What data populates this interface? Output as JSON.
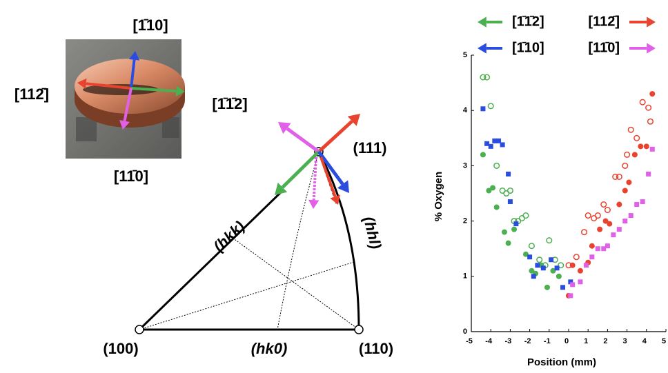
{
  "diagram": {
    "photo_labels": {
      "top": "[1̄10]",
      "left": "[112̄]",
      "right": "[1̄1̄2]",
      "bottom": "[11̄0]"
    },
    "pole_111": "(111)",
    "pole_100": "(100)",
    "pole_110": "(110)",
    "edge_hkk": "(hkk)",
    "edge_hhl": "(hhl)",
    "edge_hk0": "(hk0)"
  },
  "chart_data": {
    "type": "scatter",
    "xlabel": "Position (mm)",
    "ylabel": "% Oxygen",
    "xlim": [
      -5,
      5
    ],
    "xticks": [
      -5,
      -4,
      -3,
      -2,
      -1,
      0,
      1,
      2,
      3,
      4,
      5
    ],
    "ylim": [
      0,
      5
    ],
    "yticks": [
      0,
      1,
      2,
      3,
      4,
      5
    ],
    "legend": [
      {
        "label": "[1̄1̄2]",
        "color": "#4caf50",
        "side": "left"
      },
      {
        "label": "[112̄]",
        "color": "#e8432e",
        "side": "right"
      },
      {
        "label": "[1̄10]",
        "color": "#2a4de0",
        "side": "left"
      },
      {
        "label": "[11̄0]",
        "color": "#e060e8",
        "side": "right"
      }
    ],
    "series": [
      {
        "color": "#4caf50",
        "marker": "circle",
        "x": [
          -4.4,
          -4.1,
          -3.9,
          -3.7,
          -3.3,
          -3.1,
          -2.8,
          -2.2,
          -1.9,
          -1.7,
          -1.4,
          -1.1,
          -0.8,
          -0.5
        ],
        "values": [
          3.2,
          2.55,
          2.6,
          2.25,
          1.8,
          1.6,
          1.85,
          1.4,
          1.1,
          1.05,
          1.2,
          0.8,
          1.1,
          1.0
        ]
      },
      {
        "color": "#4caf50",
        "marker": "open-circle",
        "x": [
          -4.4,
          -4.2,
          -4.0,
          -3.7,
          -3.4,
          -3.2,
          -3.0,
          -2.8,
          -2.6,
          -2.4,
          -2.2,
          -1.9,
          -1.5,
          -1.2,
          -1.0,
          -0.7,
          -0.4
        ],
        "values": [
          4.6,
          4.6,
          4.08,
          3.0,
          2.55,
          2.5,
          2.55,
          2.0,
          2.0,
          2.05,
          2.1,
          1.55,
          1.3,
          1.2,
          1.65,
          1.3,
          1.2
        ]
      },
      {
        "color": "#2a4de0",
        "marker": "square",
        "x": [
          -4.4,
          -4.2,
          -4.0,
          -3.8,
          -3.6,
          -3.4,
          -3.1,
          -3.0,
          -2.7,
          -2.0,
          -1.8,
          -1.6,
          -1.3,
          -0.9,
          -0.6,
          -0.3,
          0.1
        ],
        "values": [
          4.03,
          3.4,
          3.35,
          3.45,
          3.45,
          3.38,
          2.85,
          2.35,
          1.95,
          1.35,
          1.0,
          1.2,
          1.15,
          1.3,
          1.15,
          0.8,
          0.9
        ]
      },
      {
        "color": "#e8432e",
        "marker": "circle",
        "x": [
          0.0,
          0.2,
          0.6,
          1.0,
          1.2,
          1.6,
          1.9,
          2.1,
          2.6,
          2.9,
          3.1,
          3.4,
          3.7,
          4.0,
          4.3
        ],
        "values": [
          0.65,
          1.2,
          1.1,
          1.25,
          1.55,
          1.85,
          2.0,
          1.95,
          2.3,
          2.55,
          2.7,
          3.2,
          3.35,
          3.35,
          4.3
        ]
      },
      {
        "color": "#e8432e",
        "marker": "open-circle",
        "x": [
          0.0,
          0.4,
          0.8,
          1.0,
          1.3,
          1.5,
          1.8,
          2.0,
          2.4,
          2.6,
          2.9,
          3.0,
          3.2,
          3.5,
          3.8,
          4.1,
          4.2
        ],
        "values": [
          1.2,
          1.35,
          1.8,
          2.1,
          2.05,
          2.1,
          2.3,
          2.2,
          2.8,
          2.8,
          3.0,
          3.2,
          3.65,
          3.5,
          4.15,
          4.05,
          3.8
        ]
      },
      {
        "color": "#e060e8",
        "marker": "square",
        "x": [
          0.1,
          0.2,
          0.6,
          0.9,
          1.2,
          1.5,
          1.8,
          2.0,
          2.3,
          2.6,
          2.9,
          3.2,
          3.5,
          3.8,
          4.1,
          4.3
        ],
        "values": [
          0.65,
          0.85,
          0.9,
          1.2,
          1.35,
          1.5,
          1.5,
          1.55,
          1.75,
          1.85,
          2.0,
          2.1,
          2.3,
          2.35,
          2.85,
          3.3
        ]
      }
    ]
  }
}
